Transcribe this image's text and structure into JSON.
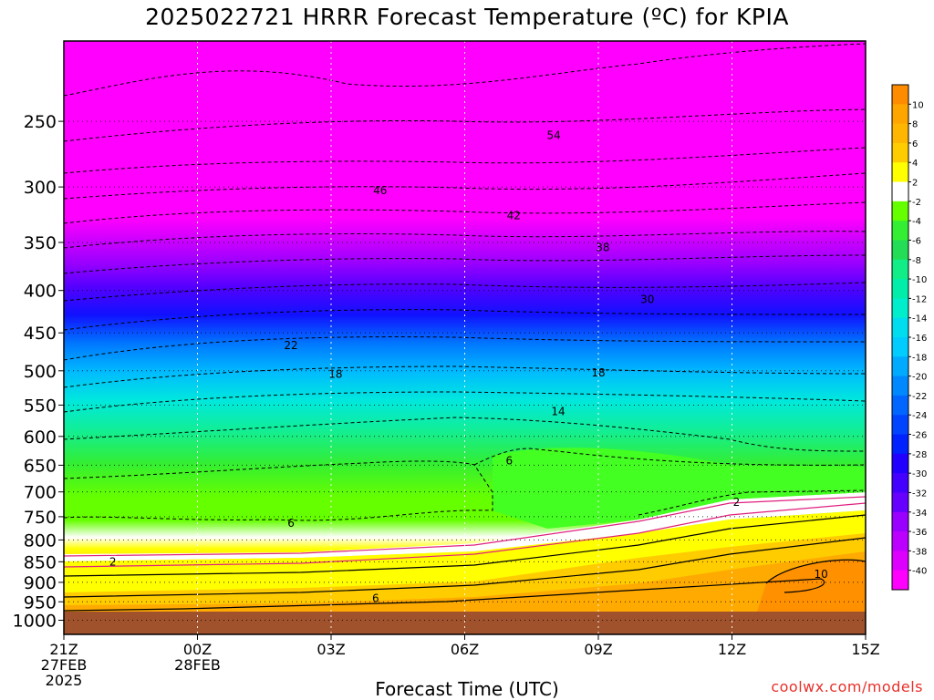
{
  "title": "2025022721 HRRR Forecast Temperature (ºC) for KPIA",
  "xlabel": "Forecast Time (UTC)",
  "credit": "coolwx.com/models",
  "colors": {
    "ground": "#a0522d",
    "contour": "#000000",
    "freezing_line": "#e0207e",
    "credit": "#e8302a"
  },
  "chart_data": {
    "type": "heatmap",
    "title": "2025022721 HRRR Forecast Temperature (ºC) for KPIA",
    "xlabel": "Forecast Time (UTC)",
    "ylabel": "",
    "x_ticks": [
      {
        "label": "21Z",
        "sub1": "27FEB",
        "sub2": "2025",
        "hour": 0
      },
      {
        "label": "00Z",
        "sub1": "28FEB",
        "sub2": "",
        "hour": 3
      },
      {
        "label": "03Z",
        "sub1": "",
        "sub2": "",
        "hour": 6
      },
      {
        "label": "06Z",
        "sub1": "",
        "sub2": "",
        "hour": 9
      },
      {
        "label": "09Z",
        "sub1": "",
        "sub2": "",
        "hour": 12
      },
      {
        "label": "12Z",
        "sub1": "",
        "sub2": "",
        "hour": 15
      },
      {
        "label": "15Z",
        "sub1": "",
        "sub2": "",
        "hour": 18
      }
    ],
    "x_range_hours": [
      0,
      18
    ],
    "y_ticks_hpa": [
      250,
      300,
      350,
      400,
      450,
      500,
      550,
      600,
      650,
      700,
      750,
      800,
      850,
      900,
      950,
      1000
    ],
    "y_range_hpa": [
      200,
      1040
    ],
    "y_scale": "log-pressure",
    "grid": true,
    "colorbar": {
      "labels": [
        10,
        8,
        6,
        4,
        2,
        -2,
        -4,
        -6,
        -8,
        -10,
        -12,
        -14,
        -16,
        -18,
        -20,
        -22,
        -24,
        -26,
        -28,
        -30,
        -32,
        -34,
        -36,
        -38,
        -40
      ],
      "colors": [
        "#ff8c00",
        "#ffa500",
        "#ffb600",
        "#ffcc00",
        "#ffff00",
        "#ffffff",
        "#66ff00",
        "#33ee33",
        "#22dd55",
        "#11ee88",
        "#00eeaa",
        "#00eecc",
        "#00ddee",
        "#00ccff",
        "#00aaff",
        "#0088ff",
        "#0066ff",
        "#0044ff",
        "#0022ff",
        "#2200ff",
        "#4400ff",
        "#6600ff",
        "#9900ff",
        "#bb00ff",
        "#dd00ff",
        "#ff00ff"
      ]
    },
    "contour_labels": [
      {
        "text": "54",
        "hour": 11.0,
        "hpa": 260
      },
      {
        "text": "46",
        "hour": 7.1,
        "hpa": 303
      },
      {
        "text": "42",
        "hour": 10.1,
        "hpa": 325
      },
      {
        "text": "38",
        "hour": 12.1,
        "hpa": 355
      },
      {
        "text": "30",
        "hour": 13.1,
        "hpa": 410
      },
      {
        "text": "22",
        "hour": 5.1,
        "hpa": 466
      },
      {
        "text": "18",
        "hour": 6.1,
        "hpa": 505
      },
      {
        "text": "18",
        "hour": 12.0,
        "hpa": 503
      },
      {
        "text": "14",
        "hour": 11.1,
        "hpa": 560
      },
      {
        "text": "6",
        "hour": 10.0,
        "hpa": 642
      },
      {
        "text": "6",
        "hour": 5.1,
        "hpa": 764
      },
      {
        "text": "2",
        "hour": 15.1,
        "hpa": 720
      },
      {
        "text": "2",
        "hour": 1.1,
        "hpa": 850
      },
      {
        "text": "6",
        "hour": 7.0,
        "hpa": 941
      },
      {
        "text": "10",
        "hour": 17.0,
        "hpa": 880
      }
    ]
  }
}
